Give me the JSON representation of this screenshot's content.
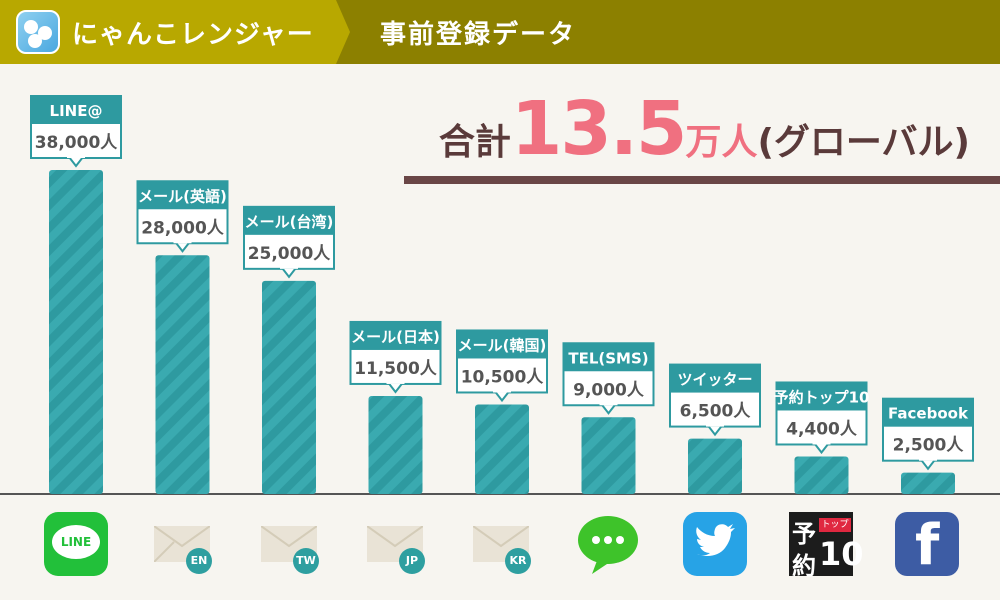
{
  "header": {
    "app_title": "にゃんこレンジャー",
    "subtitle": "事前登録データ"
  },
  "summary": {
    "prefix": "合計",
    "total_value": "13.5",
    "unit": "万人",
    "suffix": "(グローバル)"
  },
  "colors": {
    "bar": "#3aaab0",
    "bar_stripe": "#2e9aa0",
    "label_header": "#2e9aa0",
    "total_accent": "#f07080",
    "header_left": "#b8a800",
    "header_right": "#8c8000"
  },
  "icons": [
    "line-icon",
    "mail-icon-en",
    "mail-icon-tw",
    "mail-icon-jp",
    "mail-icon-kr",
    "sms-icon",
    "twitter-icon",
    "yoyaku-top10-icon",
    "facebook-icon"
  ],
  "icon_labels": {
    "line": "LINE",
    "en": "EN",
    "tw": "TW",
    "jp": "JP",
    "kr": "KR",
    "yoyaku_main1": "予",
    "yoyaku_main2": "約",
    "yoyaku_tag": "トップ",
    "yoyaku_num": "10"
  },
  "chart_data": {
    "type": "bar",
    "categories": [
      "LINE@",
      "メール(英語)",
      "メール(台湾)",
      "メール(日本)",
      "メール(韓国)",
      "TEL(SMS)",
      "ツイッター",
      "予約トップ10",
      "Facebook"
    ],
    "values": [
      38000,
      28000,
      25000,
      11500,
      10500,
      9000,
      6500,
      4400,
      2500
    ],
    "value_labels": [
      "38,000人",
      "28,000人",
      "25,000人",
      "11,500人",
      "10,500人",
      "9,000人",
      "6,500人",
      "4,400人",
      "2,500人"
    ],
    "ylim": [
      0,
      38000
    ]
  }
}
